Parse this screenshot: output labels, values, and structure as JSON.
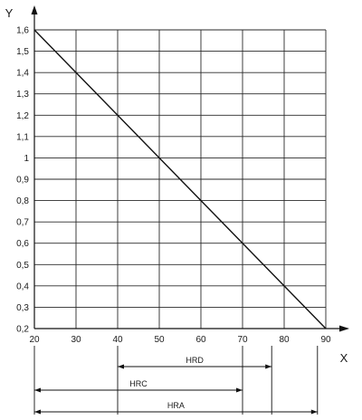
{
  "chart_data": {
    "type": "line",
    "title": "",
    "xlabel": "X",
    "ylabel": "Y",
    "xlim": [
      20,
      90
    ],
    "ylim": [
      0.2,
      1.6
    ],
    "grid": true,
    "x_ticks": [
      20,
      30,
      40,
      50,
      60,
      70,
      80,
      90
    ],
    "x_tick_labels": [
      "20",
      "30",
      "40",
      "50",
      "60",
      "70",
      "80",
      "90"
    ],
    "y_ticks": [
      0.2,
      0.3,
      0.4,
      0.5,
      0.6,
      0.7,
      0.8,
      0.9,
      1.0,
      1.1,
      1.2,
      1.3,
      1.4,
      1.5,
      1.6
    ],
    "y_tick_labels": [
      "0,2",
      "0,3",
      "0,4",
      "0,5",
      "0,6",
      "0,7",
      "0,8",
      "0,9",
      "1",
      "1,1",
      "1,2",
      "1,3",
      "1,4",
      "1,5",
      "1,6"
    ],
    "series": [
      {
        "x": [
          20,
          90
        ],
        "y": [
          1.6,
          0.2
        ]
      }
    ],
    "ranges": [
      {
        "label": "HRD",
        "x": [
          40,
          77
        ]
      },
      {
        "label": "HRC",
        "x": [
          20,
          70
        ]
      },
      {
        "label": "HRA",
        "x": [
          20,
          88
        ]
      }
    ]
  }
}
